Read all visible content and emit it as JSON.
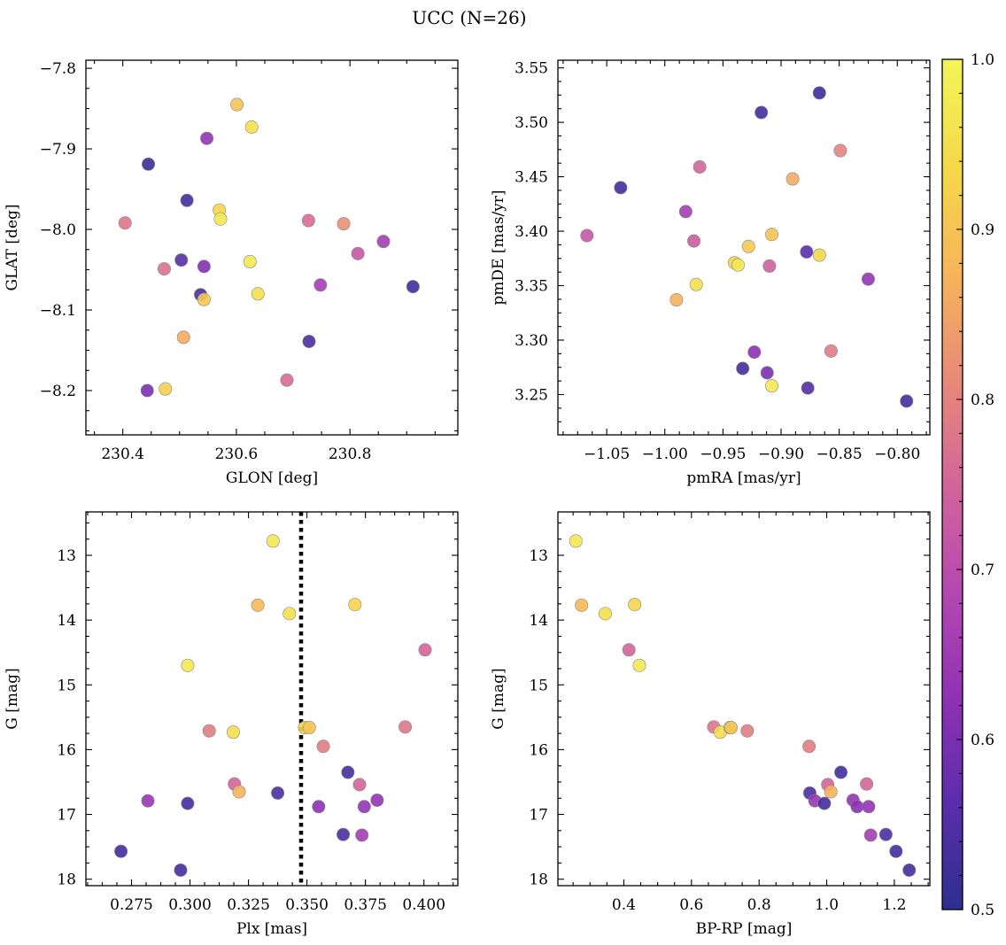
{
  "title": "UCC (N=26)",
  "colorbar": {
    "min": 0.5,
    "max": 1.0,
    "ticks": [
      0.5,
      0.6,
      0.7,
      0.8,
      0.9,
      1.0
    ],
    "tick_labels": [
      "0.5",
      "0.6",
      "0.7",
      "0.8",
      "0.9",
      "1.0"
    ],
    "colormap": "plasma",
    "stops": [
      "#2e2f8f",
      "#5b2dab",
      "#8f32b4",
      "#b548b0",
      "#d2669a",
      "#e88a78",
      "#f7b55a",
      "#f5d94a",
      "#f2f55a"
    ]
  },
  "marker_edge_color": "#888888",
  "chart_data": [
    {
      "type": "scatter",
      "panel": "top-left",
      "xlabel": "GLON [deg]",
      "ylabel": "GLAT [deg]",
      "xlim": [
        230.335,
        230.99
      ],
      "ylim": [
        -8.255,
        -7.79
      ],
      "invert_y": false,
      "xticks": [
        230.4,
        230.6,
        230.8
      ],
      "xtick_labels": [
        "230.4",
        "230.6",
        "230.8"
      ],
      "yticks": [
        -7.8,
        -7.9,
        -8.0,
        -8.1,
        -8.2
      ],
      "ytick_labels": [
        "−7.8",
        "−7.9",
        "−8.0",
        "−8.1",
        "−8.2"
      ],
      "points": [
        {
          "x": 230.601,
          "y": -7.845,
          "c": 0.9
        },
        {
          "x": 230.627,
          "y": -7.873,
          "c": 0.95
        },
        {
          "x": 230.548,
          "y": -7.887,
          "c": 0.63
        },
        {
          "x": 230.445,
          "y": -7.919,
          "c": 0.52
        },
        {
          "x": 230.513,
          "y": -7.964,
          "c": 0.53
        },
        {
          "x": 230.57,
          "y": -7.976,
          "c": 0.93
        },
        {
          "x": 230.572,
          "y": -7.987,
          "c": 0.97
        },
        {
          "x": 230.404,
          "y": -7.992,
          "c": 0.78
        },
        {
          "x": 230.727,
          "y": -7.989,
          "c": 0.76
        },
        {
          "x": 230.789,
          "y": -7.993,
          "c": 0.82
        },
        {
          "x": 230.859,
          "y": -8.015,
          "c": 0.66
        },
        {
          "x": 230.814,
          "y": -8.03,
          "c": 0.72
        },
        {
          "x": 230.503,
          "y": -8.038,
          "c": 0.56
        },
        {
          "x": 230.624,
          "y": -8.04,
          "c": 0.97
        },
        {
          "x": 230.473,
          "y": -8.049,
          "c": 0.77
        },
        {
          "x": 230.543,
          "y": -8.046,
          "c": 0.61
        },
        {
          "x": 230.748,
          "y": -8.069,
          "c": 0.66
        },
        {
          "x": 230.911,
          "y": -8.071,
          "c": 0.53
        },
        {
          "x": 230.638,
          "y": -8.08,
          "c": 0.95
        },
        {
          "x": 230.537,
          "y": -8.081,
          "c": 0.54
        },
        {
          "x": 230.543,
          "y": -8.087,
          "c": 0.91
        },
        {
          "x": 230.507,
          "y": -8.134,
          "c": 0.86
        },
        {
          "x": 230.728,
          "y": -8.139,
          "c": 0.54
        },
        {
          "x": 230.689,
          "y": -8.187,
          "c": 0.76
        },
        {
          "x": 230.443,
          "y": -8.2,
          "c": 0.6
        },
        {
          "x": 230.475,
          "y": -8.198,
          "c": 0.92
        }
      ]
    },
    {
      "type": "scatter",
      "panel": "top-right",
      "xlabel": "pmRA [mas/yr]",
      "ylabel": "pmDE [mas/yr]",
      "xlim": [
        -1.092,
        -0.772
      ],
      "ylim": [
        3.213,
        3.557
      ],
      "invert_y": false,
      "xticks": [
        -1.05,
        -1.0,
        -0.95,
        -0.9,
        -0.85,
        -0.8
      ],
      "xtick_labels": [
        "−1.05",
        "−1.00",
        "−0.95",
        "−0.90",
        "−0.85",
        "−0.80"
      ],
      "yticks": [
        3.25,
        3.3,
        3.35,
        3.4,
        3.45,
        3.5,
        3.55
      ],
      "ytick_labels": [
        "3.25",
        "3.30",
        "3.35",
        "3.40",
        "3.45",
        "3.50",
        "3.55"
      ],
      "points": [
        {
          "x": -0.867,
          "y": 3.527,
          "c": 0.52
        },
        {
          "x": -0.917,
          "y": 3.509,
          "c": 0.53
        },
        {
          "x": -0.849,
          "y": 3.474,
          "c": 0.8
        },
        {
          "x": -0.97,
          "y": 3.459,
          "c": 0.75
        },
        {
          "x": -0.89,
          "y": 3.448,
          "c": 0.86
        },
        {
          "x": -1.038,
          "y": 3.44,
          "c": 0.53
        },
        {
          "x": -0.982,
          "y": 3.418,
          "c": 0.66
        },
        {
          "x": -0.908,
          "y": 3.397,
          "c": 0.9
        },
        {
          "x": -1.067,
          "y": 3.396,
          "c": 0.72
        },
        {
          "x": -0.975,
          "y": 3.391,
          "c": 0.73
        },
        {
          "x": -0.928,
          "y": 3.386,
          "c": 0.91
        },
        {
          "x": -0.878,
          "y": 3.381,
          "c": 0.56
        },
        {
          "x": -0.867,
          "y": 3.378,
          "c": 0.93
        },
        {
          "x": -0.94,
          "y": 3.371,
          "c": 0.93
        },
        {
          "x": -0.937,
          "y": 3.369,
          "c": 0.97
        },
        {
          "x": -0.91,
          "y": 3.368,
          "c": 0.74
        },
        {
          "x": -0.825,
          "y": 3.356,
          "c": 0.63
        },
        {
          "x": -0.973,
          "y": 3.351,
          "c": 0.95
        },
        {
          "x": -0.99,
          "y": 3.337,
          "c": 0.87
        },
        {
          "x": -0.857,
          "y": 3.29,
          "c": 0.79
        },
        {
          "x": -0.923,
          "y": 3.289,
          "c": 0.62
        },
        {
          "x": -0.933,
          "y": 3.274,
          "c": 0.53
        },
        {
          "x": -0.912,
          "y": 3.27,
          "c": 0.6
        },
        {
          "x": -0.908,
          "y": 3.258,
          "c": 0.97
        },
        {
          "x": -0.877,
          "y": 3.256,
          "c": 0.55
        },
        {
          "x": -0.792,
          "y": 3.244,
          "c": 0.53
        }
      ]
    },
    {
      "type": "scatter",
      "panel": "bottom-left",
      "xlabel": "Plx [mas]",
      "ylabel": "G [mag]",
      "xlim": [
        0.2555,
        0.4145
      ],
      "ylim": [
        12.33,
        18.1
      ],
      "invert_y": true,
      "xticks": [
        0.275,
        0.3,
        0.325,
        0.35,
        0.375,
        0.4
      ],
      "xtick_labels": [
        "0.275",
        "0.300",
        "0.325",
        "0.350",
        "0.375",
        "0.400"
      ],
      "yticks": [
        13,
        14,
        15,
        16,
        17,
        18
      ],
      "ytick_labels": [
        "13",
        "14",
        "15",
        "16",
        "17",
        "18"
      ],
      "vline": {
        "x": 0.3475,
        "style": "dotted",
        "color": "#000000"
      },
      "points": [
        {
          "x": 0.3355,
          "y": 12.78,
          "c": 0.97
        },
        {
          "x": 0.329,
          "y": 13.77,
          "c": 0.88
        },
        {
          "x": 0.3705,
          "y": 13.76,
          "c": 0.93
        },
        {
          "x": 0.3425,
          "y": 13.9,
          "c": 0.95
        },
        {
          "x": 0.4005,
          "y": 14.46,
          "c": 0.75
        },
        {
          "x": 0.299,
          "y": 14.7,
          "c": 0.97
        },
        {
          "x": 0.3082,
          "y": 15.71,
          "c": 0.79
        },
        {
          "x": 0.3185,
          "y": 15.73,
          "c": 0.95
        },
        {
          "x": 0.349,
          "y": 15.66,
          "c": 0.93
        },
        {
          "x": 0.351,
          "y": 15.66,
          "c": 0.9
        },
        {
          "x": 0.392,
          "y": 15.65,
          "c": 0.78
        },
        {
          "x": 0.357,
          "y": 15.95,
          "c": 0.79
        },
        {
          "x": 0.3675,
          "y": 16.35,
          "c": 0.53
        },
        {
          "x": 0.319,
          "y": 16.53,
          "c": 0.75
        },
        {
          "x": 0.3725,
          "y": 16.54,
          "c": 0.75
        },
        {
          "x": 0.321,
          "y": 16.65,
          "c": 0.87
        },
        {
          "x": 0.3375,
          "y": 16.67,
          "c": 0.54
        },
        {
          "x": 0.282,
          "y": 16.79,
          "c": 0.64
        },
        {
          "x": 0.299,
          "y": 16.83,
          "c": 0.53
        },
        {
          "x": 0.38,
          "y": 16.78,
          "c": 0.63
        },
        {
          "x": 0.355,
          "y": 16.88,
          "c": 0.62
        },
        {
          "x": 0.3745,
          "y": 16.88,
          "c": 0.63
        },
        {
          "x": 0.3655,
          "y": 17.31,
          "c": 0.54
        },
        {
          "x": 0.3735,
          "y": 17.32,
          "c": 0.66
        },
        {
          "x": 0.2705,
          "y": 17.57,
          "c": 0.53
        },
        {
          "x": 0.296,
          "y": 17.86,
          "c": 0.53
        }
      ]
    },
    {
      "type": "scatter",
      "panel": "bottom-right",
      "xlabel": "BP-RP [mag]",
      "ylabel": "G [mag]",
      "xlim": [
        0.205,
        1.305
      ],
      "ylim": [
        12.33,
        18.1
      ],
      "invert_y": true,
      "xticks": [
        0.4,
        0.6,
        0.8,
        1.0,
        1.2
      ],
      "xtick_labels": [
        "0.4",
        "0.6",
        "0.8",
        "1.0",
        "1.2"
      ],
      "yticks": [
        13,
        14,
        15,
        16,
        17,
        18
      ],
      "ytick_labels": [
        "13",
        "14",
        "15",
        "16",
        "17",
        "18"
      ],
      "points": [
        {
          "x": 0.258,
          "y": 12.78,
          "c": 0.97
        },
        {
          "x": 0.275,
          "y": 13.77,
          "c": 0.88
        },
        {
          "x": 0.345,
          "y": 13.9,
          "c": 0.95
        },
        {
          "x": 0.432,
          "y": 13.76,
          "c": 0.93
        },
        {
          "x": 0.415,
          "y": 14.46,
          "c": 0.75
        },
        {
          "x": 0.446,
          "y": 14.7,
          "c": 0.97
        },
        {
          "x": 0.666,
          "y": 15.65,
          "c": 0.78
        },
        {
          "x": 0.685,
          "y": 15.73,
          "c": 0.95
        },
        {
          "x": 0.714,
          "y": 15.66,
          "c": 0.93
        },
        {
          "x": 0.717,
          "y": 15.66,
          "c": 0.9
        },
        {
          "x": 0.765,
          "y": 15.71,
          "c": 0.79
        },
        {
          "x": 0.948,
          "y": 15.95,
          "c": 0.79
        },
        {
          "x": 1.042,
          "y": 16.35,
          "c": 0.53
        },
        {
          "x": 1.003,
          "y": 16.54,
          "c": 0.75
        },
        {
          "x": 1.118,
          "y": 16.53,
          "c": 0.75
        },
        {
          "x": 1.012,
          "y": 16.65,
          "c": 0.87
        },
        {
          "x": 0.95,
          "y": 16.67,
          "c": 0.54
        },
        {
          "x": 0.965,
          "y": 16.79,
          "c": 0.64
        },
        {
          "x": 0.993,
          "y": 16.83,
          "c": 0.53
        },
        {
          "x": 1.078,
          "y": 16.78,
          "c": 0.63
        },
        {
          "x": 1.09,
          "y": 16.88,
          "c": 0.62
        },
        {
          "x": 1.124,
          "y": 16.88,
          "c": 0.63
        },
        {
          "x": 1.13,
          "y": 17.32,
          "c": 0.66
        },
        {
          "x": 1.175,
          "y": 17.31,
          "c": 0.54
        },
        {
          "x": 1.205,
          "y": 17.57,
          "c": 0.53
        },
        {
          "x": 1.244,
          "y": 17.86,
          "c": 0.53
        }
      ]
    }
  ]
}
